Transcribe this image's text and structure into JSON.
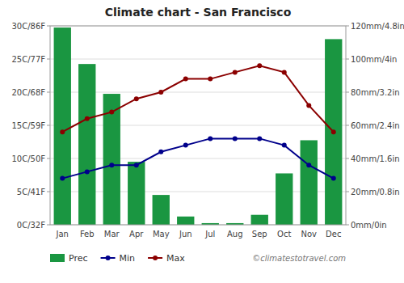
{
  "chart_data": {
    "type": "bar",
    "title": "Climate chart - San Francisco",
    "categories": [
      "Jan",
      "Feb",
      "Mar",
      "Apr",
      "May",
      "Jun",
      "Jul",
      "Aug",
      "Sep",
      "Oct",
      "Nov",
      "Dec"
    ],
    "series": [
      {
        "name": "Prec",
        "type": "bar",
        "axis": "y2",
        "color": "#1a9641",
        "values": [
          119,
          97,
          79,
          38,
          18,
          5,
          1,
          1,
          6,
          31,
          51,
          112
        ]
      },
      {
        "name": "Min",
        "type": "line",
        "color": "#00008b",
        "marker": "circle",
        "values": [
          7,
          8,
          9,
          9,
          11,
          12,
          13,
          13,
          13,
          12,
          9,
          7
        ]
      },
      {
        "name": "Max",
        "type": "line",
        "color": "#8b0000",
        "marker": "circle",
        "values": [
          14,
          16,
          17,
          19,
          20,
          22,
          22,
          23,
          24,
          23,
          18,
          14
        ]
      }
    ],
    "ylim": [
      0,
      30
    ],
    "yticks": [
      {
        "value": 0,
        "label": "0C/32F"
      },
      {
        "value": 5,
        "label": "5C/41F"
      },
      {
        "value": 10,
        "label": "10C/50F"
      },
      {
        "value": 15,
        "label": "15C/59F"
      },
      {
        "value": 20,
        "label": "20C/68F"
      },
      {
        "value": 25,
        "label": "25C/77F"
      },
      {
        "value": 30,
        "label": "30C/86F"
      }
    ],
    "y2lim": [
      0,
      120
    ],
    "y2ticks": [
      {
        "value": 0,
        "label": "0mm/0in"
      },
      {
        "value": 20,
        "label": "20mm/0.8in"
      },
      {
        "value": 40,
        "label": "40mm/1.6in"
      },
      {
        "value": 60,
        "label": "60mm/2.4in"
      },
      {
        "value": 80,
        "label": "80mm/3.2in"
      },
      {
        "value": 100,
        "label": "100mm/4in"
      },
      {
        "value": 120,
        "label": "120mm/4.8in"
      }
    ],
    "grid": true,
    "legend": "bottom-left",
    "annotations": [
      "©climatestotravel.com"
    ]
  }
}
